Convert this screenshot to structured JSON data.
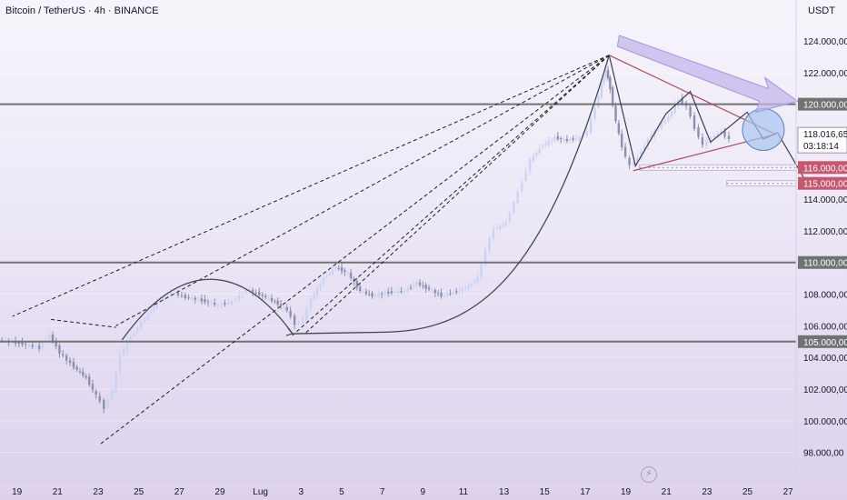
{
  "title": "Bitcoin / TetherUS · 4h · BINANCE",
  "currency": "USDT",
  "colors": {
    "candle": "#c9d4f5",
    "candle_dark": "#8b8fb0",
    "hline": "#6f7473",
    "fan": "#1e1e1e",
    "triangle": "#b04a63",
    "price_tag": "#c7576e",
    "current_tag": "#8a8a96",
    "arrow_fill": "#c6b6ea",
    "circle": "#a9c4ef",
    "projection": "#3b3f4a"
  },
  "chart_data": {
    "type": "candlestick",
    "symbol": "Bitcoin / TetherUS",
    "timeframe": "4h",
    "exchange": "BINANCE",
    "ylim": [
      97000,
      125500
    ],
    "y_ticks": [
      "124.000,00",
      "122.000,00",
      "118.016,65",
      "114.000,00",
      "112.000,00",
      "108.000,00",
      "106.000,00",
      "104.000,00",
      "102.000,00",
      "100.000,00",
      "98.000,00"
    ],
    "x_ticks": [
      "19",
      "21",
      "23",
      "25",
      "27",
      "29",
      "Lug",
      "3",
      "5",
      "7",
      "9",
      "11",
      "13",
      "15",
      "17",
      "19",
      "21",
      "23",
      "25",
      "27"
    ],
    "price_path": [
      [
        18.0,
        105100
      ],
      [
        19.0,
        104900
      ],
      [
        20.0,
        104600
      ],
      [
        20.5,
        105400
      ],
      [
        21.0,
        104300
      ],
      [
        21.7,
        103400
      ],
      [
        22.3,
        102700
      ],
      [
        22.8,
        101600
      ],
      [
        23.2,
        100800
      ],
      [
        23.6,
        101900
      ],
      [
        24.0,
        104200
      ],
      [
        24.5,
        105300
      ],
      [
        25.2,
        106500
      ],
      [
        25.8,
        107500
      ],
      [
        26.5,
        108100
      ],
      [
        27.2,
        107800
      ],
      [
        28.0,
        107600
      ],
      [
        28.8,
        107300
      ],
      [
        29.5,
        107500
      ],
      [
        30.2,
        108300
      ],
      [
        31.0,
        107900
      ],
      [
        31.6,
        107500
      ],
      [
        32.2,
        107000
      ],
      [
        32.6,
        106100
      ],
      [
        33.0,
        106400
      ],
      [
        33.4,
        107700
      ],
      [
        34.0,
        109000
      ],
      [
        34.6,
        109700
      ],
      [
        35.2,
        109300
      ],
      [
        35.8,
        108200
      ],
      [
        36.4,
        107900
      ],
      [
        37.2,
        108100
      ],
      [
        38.0,
        108200
      ],
      [
        38.6,
        108700
      ],
      [
        39.2,
        108300
      ],
      [
        39.8,
        107900
      ],
      [
        40.4,
        108100
      ],
      [
        41.0,
        108400
      ],
      [
        41.6,
        109000
      ],
      [
        42.0,
        110800
      ],
      [
        42.4,
        112100
      ],
      [
        43.0,
        112500
      ],
      [
        43.4,
        113800
      ],
      [
        43.8,
        115100
      ],
      [
        44.2,
        116500
      ],
      [
        44.8,
        117400
      ],
      [
        45.4,
        117900
      ],
      [
        46.0,
        117700
      ],
      [
        46.6,
        117900
      ],
      [
        47.0,
        118300
      ],
      [
        47.4,
        119800
      ],
      [
        47.7,
        121200
      ],
      [
        47.9,
        122200
      ],
      [
        48.1,
        121000
      ],
      [
        48.4,
        118900
      ],
      [
        48.7,
        117300
      ],
      [
        49.1,
        116100
      ],
      [
        49.5,
        116600
      ],
      [
        50.0,
        117800
      ],
      [
        50.5,
        118600
      ],
      [
        51.0,
        119200
      ],
      [
        51.5,
        120300
      ],
      [
        51.9,
        119900
      ],
      [
        52.3,
        118500
      ],
      [
        52.7,
        117400
      ],
      [
        53.1,
        117900
      ],
      [
        53.6,
        118200
      ],
      [
        54.0,
        117800
      ]
    ],
    "levels": [
      {
        "label": "120.000,00",
        "value": 120000
      },
      {
        "label": "110.000,00",
        "value": 110000
      },
      {
        "label": "105.000,00",
        "value": 105000
      }
    ],
    "current": {
      "label": "118.016,65",
      "value": 118016.65,
      "countdown": "03:18:14"
    },
    "zones": [
      {
        "label": "116.000,00",
        "value": 116000
      },
      {
        "label": "115.000,00",
        "value": 115000
      }
    ]
  }
}
